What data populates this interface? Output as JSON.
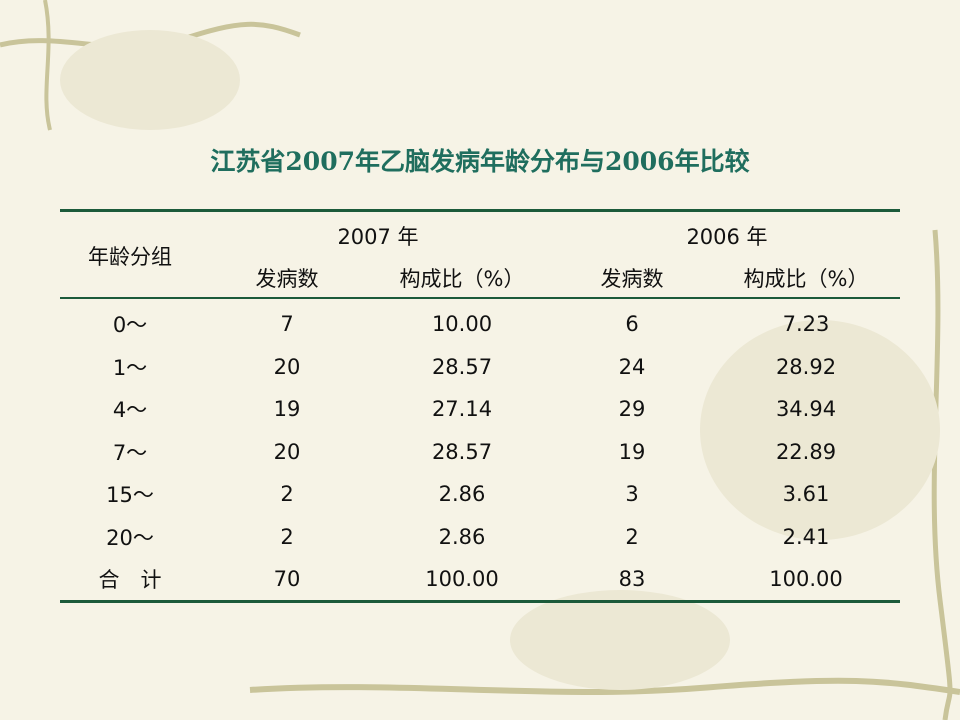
{
  "title": "江苏省2007年乙脑发病年龄分布与2006年比较",
  "table": {
    "age_header": "年龄分组",
    "groups": [
      "2007 年",
      "2006 年"
    ],
    "subheaders": [
      "发病数",
      "构成比（%）",
      "发病数",
      "构成比（%）"
    ],
    "rows": [
      [
        "0～",
        "7",
        "10.00",
        "6",
        "7.23"
      ],
      [
        "1～",
        "20",
        "28.57",
        "24",
        "28.92"
      ],
      [
        "4～",
        "19",
        "27.14",
        "29",
        "34.94"
      ],
      [
        "7～",
        "20",
        "28.57",
        "19",
        "22.89"
      ],
      [
        "15～",
        "2",
        "2.86",
        "3",
        "3.61"
      ],
      [
        "20～",
        "2",
        "2.86",
        "2",
        "2.41"
      ],
      [
        "合　计",
        "70",
        "100.00",
        "83",
        "100.00"
      ]
    ]
  }
}
